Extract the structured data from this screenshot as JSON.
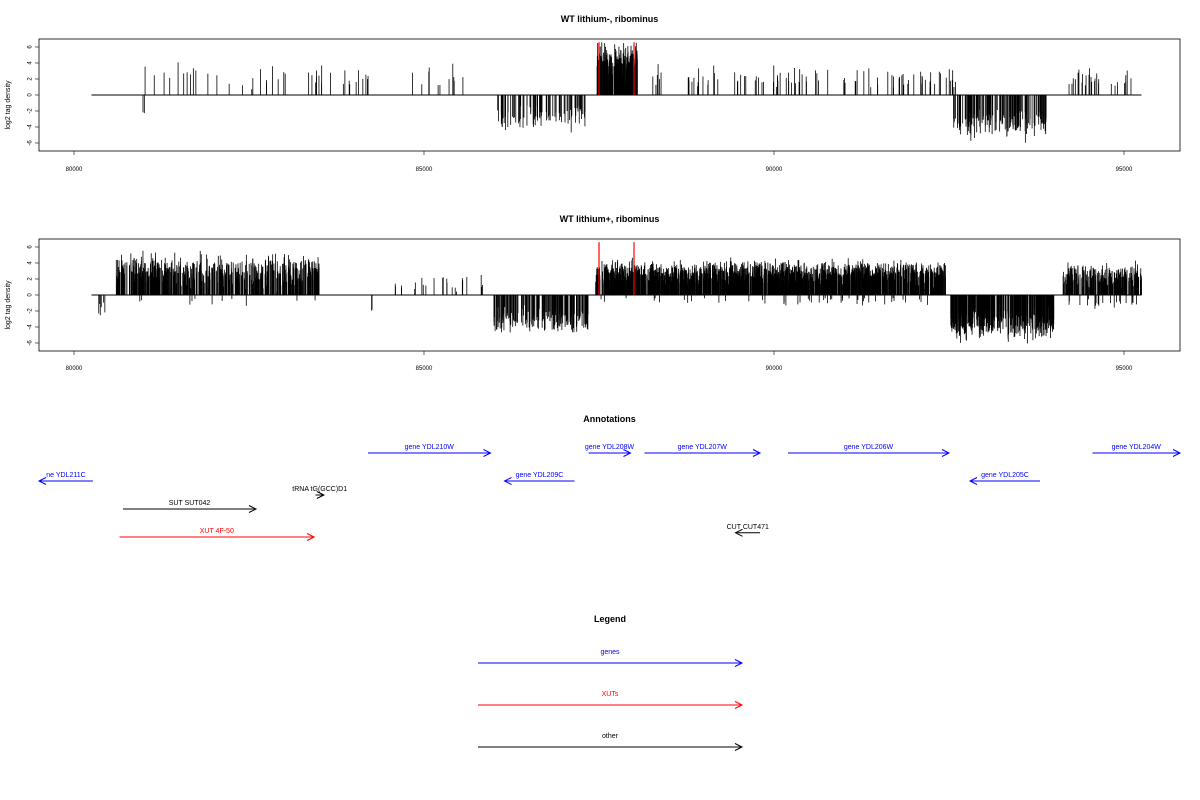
{
  "colors": {
    "genes": "#0000ff",
    "XUTs": "#ff0000",
    "other": "#000000",
    "highlight": "#ff0000",
    "frame": "#000000"
  },
  "chart_data": [
    {
      "type": "bar",
      "title": "WT lithium-, ribominus",
      "ylabel": "log2 tag density",
      "xlim": [
        79500,
        95800
      ],
      "ylim": [
        -7,
        7
      ],
      "x_ticks": [
        80000,
        85000,
        90000,
        95000
      ],
      "y_ticks": [
        -6,
        -4,
        -2,
        0,
        2,
        4,
        6
      ],
      "baseline_range": [
        80250,
        95250
      ],
      "highlight_markers": [
        87500,
        88000
      ],
      "clusters": [
        {
          "strand": "+",
          "start": 80900,
          "end": 85700,
          "mean": 2.3,
          "spread": 1.0,
          "density": 0.011
        },
        {
          "strand": "-",
          "start": 80980,
          "end": 81010,
          "mean": 2.2,
          "spread": 0.1,
          "density": 0.08
        },
        {
          "strand": "-",
          "start": 86050,
          "end": 87300,
          "mean": 3.0,
          "spread": 1.1,
          "density": 0.07
        },
        {
          "strand": "+",
          "start": 87470,
          "end": 88050,
          "mean": 4.0,
          "spread": 1.5,
          "density": 0.45
        },
        {
          "strand": "+",
          "start": 88200,
          "end": 92600,
          "mean": 2.2,
          "spread": 1.0,
          "density": 0.022
        },
        {
          "strand": "-",
          "start": 92550,
          "end": 93900,
          "mean": 3.5,
          "spread": 1.3,
          "density": 0.12
        },
        {
          "strand": "+",
          "start": 94200,
          "end": 95100,
          "mean": 2.0,
          "spread": 0.9,
          "density": 0.03
        }
      ]
    },
    {
      "type": "bar",
      "title": "WT lithium+, ribominus",
      "ylabel": "log2 tag density",
      "xlim": [
        79500,
        95800
      ],
      "ylim": [
        -7,
        7
      ],
      "x_ticks": [
        80000,
        85000,
        90000,
        95000
      ],
      "y_ticks": [
        -6,
        -4,
        -2,
        0,
        2,
        4,
        6
      ],
      "baseline_range": [
        80250,
        95250
      ],
      "highlight_markers": [
        87500,
        88000
      ],
      "clusters": [
        {
          "strand": "-",
          "start": 80300,
          "end": 80500,
          "mean": 1.5,
          "spread": 0.7,
          "density": 0.03
        },
        {
          "strand": "+",
          "start": 80600,
          "end": 83500,
          "mean": 3.0,
          "spread": 1.4,
          "density": 0.2
        },
        {
          "strand": "-",
          "start": 80800,
          "end": 83500,
          "mean": 0.8,
          "spread": 0.4,
          "density": 0.004
        },
        {
          "strand": "+",
          "start": 84200,
          "end": 85900,
          "mean": 1.5,
          "spread": 0.8,
          "density": 0.014
        },
        {
          "strand": "-",
          "start": 84200,
          "end": 84300,
          "mean": 2.0,
          "spread": 0.3,
          "density": 0.02
        },
        {
          "strand": "-",
          "start": 86000,
          "end": 87350,
          "mean": 3.2,
          "spread": 1.1,
          "density": 0.15
        },
        {
          "strand": "+",
          "start": 87450,
          "end": 92450,
          "mean": 2.6,
          "spread": 1.1,
          "density": 0.35
        },
        {
          "strand": "-",
          "start": 87500,
          "end": 92400,
          "mean": 0.8,
          "spread": 0.4,
          "density": 0.01
        },
        {
          "strand": "-",
          "start": 92500,
          "end": 94000,
          "mean": 3.6,
          "spread": 1.4,
          "density": 0.25
        },
        {
          "strand": "+",
          "start": 94100,
          "end": 95250,
          "mean": 2.5,
          "spread": 1.0,
          "density": 0.2
        },
        {
          "strand": "-",
          "start": 94200,
          "end": 95250,
          "mean": 1.2,
          "spread": 0.5,
          "density": 0.02
        }
      ]
    }
  ],
  "annotations": {
    "title": "Annotations",
    "xlim": [
      79500,
      95800
    ],
    "features": [
      {
        "label": "ne YDL211C",
        "start": 79500,
        "end": 80270,
        "lane": 1,
        "dir": "left",
        "kind": "genes"
      },
      {
        "label": "SUT SUT042",
        "start": 80700,
        "end": 82600,
        "lane": 2,
        "dir": "right",
        "kind": "other"
      },
      {
        "label": "XUT 4F-50",
        "start": 80650,
        "end": 83430,
        "lane": 3,
        "dir": "right",
        "kind": "XUTs"
      },
      {
        "label": "tRNA tG(GCC)D1",
        "start": 83450,
        "end": 83570,
        "lane": 1.5,
        "dir": "right",
        "kind": "other"
      },
      {
        "label": "gene YDL210W",
        "start": 84200,
        "end": 85950,
        "lane": 0,
        "dir": "right",
        "kind": "genes"
      },
      {
        "label": "gene YDL209C",
        "start": 86150,
        "end": 87150,
        "lane": 1,
        "dir": "left",
        "kind": "genes"
      },
      {
        "label": "gene YDL208W",
        "start": 87350,
        "end": 87950,
        "lane": 0,
        "dir": "right",
        "kind": "genes"
      },
      {
        "label": "gene YDL207W",
        "start": 88150,
        "end": 89800,
        "lane": 0,
        "dir": "right",
        "kind": "genes"
      },
      {
        "label": "CUT CUT471",
        "start": 89450,
        "end": 89800,
        "lane": 2.85,
        "dir": "left",
        "kind": "other"
      },
      {
        "label": "gene YDL206W",
        "start": 90200,
        "end": 92500,
        "lane": 0,
        "dir": "right",
        "kind": "genes"
      },
      {
        "label": "gene YDL205C",
        "start": 92800,
        "end": 93800,
        "lane": 1,
        "dir": "left",
        "kind": "genes"
      },
      {
        "label": "gene YDL204W",
        "start": 94550,
        "end": 95800,
        "lane": 0,
        "dir": "right",
        "kind": "genes"
      }
    ]
  },
  "legend": {
    "title": "Legend",
    "items": [
      {
        "label": "genes",
        "kind": "genes"
      },
      {
        "label": "XUTs",
        "kind": "XUTs"
      },
      {
        "label": "other",
        "kind": "other"
      }
    ]
  }
}
